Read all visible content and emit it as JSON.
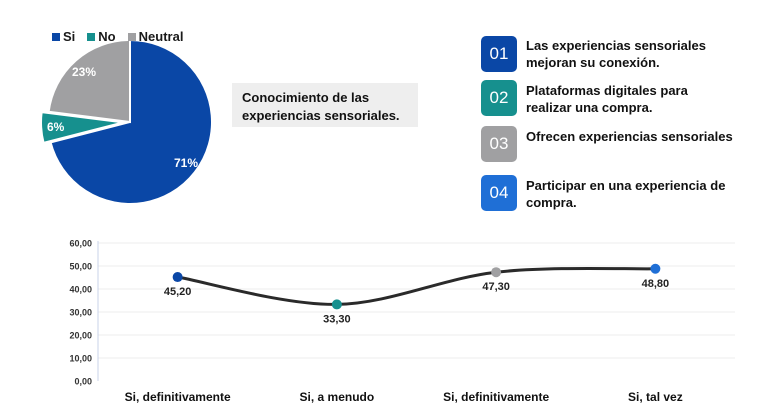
{
  "chart_data": [
    {
      "type": "pie",
      "categories": [
        "Si",
        "No",
        "Neutral"
      ],
      "values": [
        71,
        6,
        23
      ],
      "value_labels": [
        "71%",
        "6%",
        "23%"
      ],
      "colors": [
        "#0a47a6",
        "#16908e",
        "#a0a0a2"
      ],
      "legend": "top"
    },
    {
      "type": "line",
      "categories": [
        "Si, definitivamente",
        "Si, a menudo",
        "Si, definitivamente",
        "Si, tal vez"
      ],
      "values": [
        45.2,
        33.3,
        47.3,
        48.8
      ],
      "value_labels": [
        "45,20",
        "33,30",
        "47,30",
        "48,80"
      ],
      "point_colors": [
        "#0a47a6",
        "#16908e",
        "#a0a0a2",
        "#1f6fd6"
      ],
      "line_color": "#2a2a2a",
      "ylim": [
        0,
        60
      ],
      "yticks": [
        "0,00",
        "10,00",
        "20,00",
        "30,00",
        "40,00",
        "50,00",
        "60,00"
      ],
      "grid": true
    }
  ],
  "callout": "Conocimiento de las experiencias sensoriales.",
  "items": [
    {
      "num": "01",
      "text": "Las experiencias sensoriales mejoran su conexión.",
      "color": "#0a47a6"
    },
    {
      "num": "02",
      "text": "Plataformas digitales para realizar una compra.",
      "color": "#16908e"
    },
    {
      "num": "03",
      "text": "Ofrecen experiencias sensoriales",
      "color": "#a0a0a2"
    },
    {
      "num": "04",
      "text": "Participar en una experiencia de compra.",
      "color": "#1f6fd6"
    }
  ]
}
